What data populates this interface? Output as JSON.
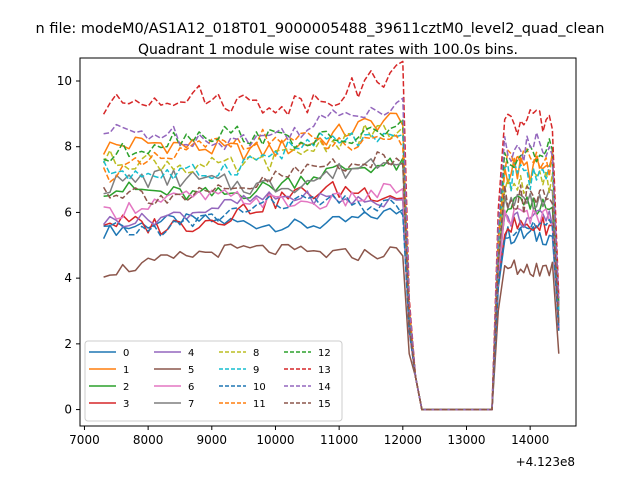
{
  "chart_data": {
    "type": "line",
    "suptitle": "n file: modeM0/AS1A12_018T01_9000005488_39611cztM0_level2_quad_clean",
    "title": "Quadrant 1 module wise count rates with 100.0s bins.",
    "xlabel": "",
    "ylabel": "",
    "x_offset_label": "+4.123e8",
    "xlim": [
      6930,
      14720
    ],
    "ylim": [
      -0.5,
      10.7
    ],
    "xticks": [
      "7000",
      "8000",
      "9000",
      "10000",
      "11000",
      "12000",
      "13000",
      "14000"
    ],
    "xtick_values": [
      7000,
      8000,
      9000,
      10000,
      11000,
      12000,
      13000,
      14000
    ],
    "yticks": [
      "0",
      "2",
      "4",
      "6",
      "8",
      "10"
    ],
    "ytick_values": [
      0,
      2,
      4,
      6,
      8,
      10
    ],
    "grid": false,
    "legend_position": "lower-left",
    "segments": [
      {
        "start": 7300,
        "end": 12000,
        "step": 100
      },
      {
        "start": 12100,
        "end": 12300,
        "step": 100
      },
      {
        "start": 13450,
        "end": 14450,
        "step": 100
      }
    ],
    "series": [
      {
        "name": "0",
        "color": "#1f77b4",
        "style": "solid",
        "base": 5.4,
        "amp": 0.2,
        "p2base": 5.3,
        "p2amp": 0.2,
        "end": 2.5
      },
      {
        "name": "1",
        "color": "#ff7f0e",
        "style": "solid",
        "base": 7.7,
        "amp": 0.3,
        "p2base": 7.3,
        "p2amp": 0.3,
        "end": 3.0
      },
      {
        "name": "2",
        "color": "#2ca02c",
        "style": "solid",
        "base": 6.5,
        "amp": 0.25,
        "p2base": 6.2,
        "p2amp": 0.2,
        "end": 2.6
      },
      {
        "name": "3",
        "color": "#d62728",
        "style": "solid",
        "base": 5.7,
        "amp": 0.3,
        "p2base": 5.6,
        "p2amp": 0.2,
        "end": 2.4
      },
      {
        "name": "4",
        "color": "#9467bd",
        "style": "solid",
        "base": 5.9,
        "amp": 0.2,
        "p2base": 5.8,
        "p2amp": 0.2,
        "end": 2.5
      },
      {
        "name": "5",
        "color": "#8c564b",
        "style": "solid",
        "base": 4.4,
        "amp": 0.2,
        "p2base": 4.3,
        "p2amp": 0.2,
        "end": 1.7
      },
      {
        "name": "6",
        "color": "#e377c2",
        "style": "solid",
        "base": 6.0,
        "amp": 0.25,
        "p2base": 5.9,
        "p2amp": 0.2,
        "end": 2.6
      },
      {
        "name": "7",
        "color": "#7f7f7f",
        "style": "solid",
        "base": 6.6,
        "amp": 0.3,
        "p2base": 6.4,
        "p2amp": 0.2,
        "end": 2.7
      },
      {
        "name": "8",
        "color": "#bcbd22",
        "style": "dashed",
        "base": 7.3,
        "amp": 0.3,
        "p2base": 6.9,
        "p2amp": 0.3,
        "end": 3.0
      },
      {
        "name": "9",
        "color": "#17becf",
        "style": "dashed",
        "base": 7.2,
        "amp": 0.3,
        "p2base": 7.1,
        "p2amp": 0.3,
        "end": 3.0
      },
      {
        "name": "10",
        "color": "#1f77b4",
        "style": "dashed",
        "base": 5.6,
        "amp": 0.25,
        "p2base": 5.5,
        "p2amp": 0.2,
        "end": 2.4
      },
      {
        "name": "11",
        "color": "#ff7f0e",
        "style": "dashed",
        "base": 7.5,
        "amp": 0.3,
        "p2base": 7.5,
        "p2amp": 0.3,
        "end": 3.1
      },
      {
        "name": "12",
        "color": "#2ca02c",
        "style": "dashed",
        "base": 7.8,
        "amp": 0.3,
        "p2base": 7.8,
        "p2amp": 0.3,
        "end": 3.2
      },
      {
        "name": "13",
        "color": "#d62728",
        "style": "dashed",
        "base": 9.0,
        "amp": 0.35,
        "p2base": 8.7,
        "p2amp": 0.3,
        "end": 3.4
      },
      {
        "name": "14",
        "color": "#9467bd",
        "style": "dashed",
        "base": 8.1,
        "amp": 0.3,
        "p2base": 8.0,
        "p2amp": 0.3,
        "end": 3.2
      },
      {
        "name": "15",
        "color": "#8c564b",
        "style": "dashed",
        "base": 6.5,
        "amp": 0.3,
        "p2base": 6.4,
        "p2amp": 0.3,
        "end": 2.6
      }
    ]
  }
}
